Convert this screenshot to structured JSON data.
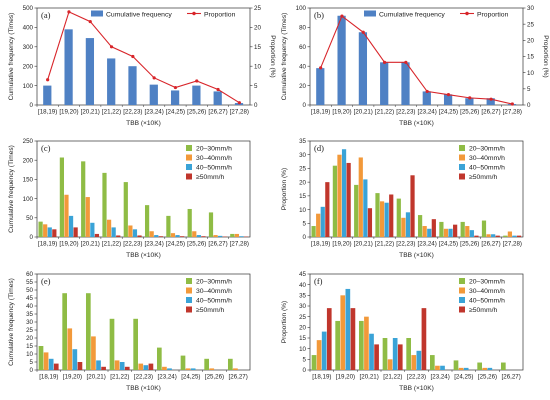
{
  "chart_data": [
    {
      "tag": "(a)",
      "type": "bar",
      "categories": [
        "[18,19)",
        "[19,20)",
        "[20,21)",
        "[21,22)",
        "[22,23)",
        "[23,24)",
        "[24,25)",
        "[25,26)",
        "[26,27)",
        "[27,28)"
      ],
      "series": [
        {
          "name": "Cumulative frequency",
          "kind": "bar",
          "axis": "left",
          "color": "#4f81c4",
          "values": [
            100,
            390,
            345,
            240,
            200,
            105,
            75,
            100,
            70,
            10
          ]
        },
        {
          "name": "Proportion",
          "kind": "line",
          "axis": "right",
          "color": "#d8252a",
          "values": [
            6.5,
            24,
            21.5,
            15,
            12.5,
            7,
            4.5,
            6.2,
            4,
            0.6
          ]
        }
      ],
      "xlabel": "TBB (×10K)",
      "ylabel": "Cumulative frequency (Times)",
      "y2label": "Proportion (%)",
      "ylim": [
        0,
        500
      ],
      "yticks": [
        0,
        100,
        200,
        300,
        400,
        500
      ],
      "y2lim": [
        0,
        25
      ],
      "y2ticks": [
        0,
        5,
        10,
        15,
        20,
        25
      ],
      "legend": "top"
    },
    {
      "tag": "(b)",
      "type": "bar",
      "categories": [
        "[18,19)",
        "[19,20)",
        "[20,21)",
        "[21,22)",
        "[22,23)",
        "[23,24)",
        "[24,25)",
        "[25,26)",
        "[26,27)",
        "[27,28)"
      ],
      "series": [
        {
          "name": "Cumulative frequency",
          "kind": "bar",
          "axis": "left",
          "color": "#4f81c4",
          "values": [
            38,
            92,
            75,
            44,
            44,
            14,
            11,
            7,
            7,
            1
          ]
        },
        {
          "name": "Proportion",
          "kind": "line",
          "axis": "right",
          "color": "#d8252a",
          "values": [
            11.5,
            27.5,
            22.5,
            13.2,
            13.2,
            4.2,
            3.2,
            2.2,
            1.8,
            0.3
          ]
        }
      ],
      "xlabel": "TBB (×10K)",
      "ylabel": "Cumulative frequency (Times)",
      "y2label": "Proportion (%)",
      "ylim": [
        0,
        100
      ],
      "yticks": [
        0,
        20,
        40,
        60,
        80,
        100
      ],
      "y2lim": [
        0,
        30
      ],
      "y2ticks": [
        0,
        5,
        10,
        15,
        20,
        25,
        30
      ],
      "legend": "top"
    },
    {
      "tag": "(c)",
      "type": "bar",
      "categories": [
        "[18,19)",
        "[19,20)",
        "[20,21)",
        "[21,22)",
        "[22,23)",
        "[23,24)",
        "[24,25)",
        "[25,26)",
        "[26,27)",
        "[27,28)"
      ],
      "series": [
        {
          "name": "20–30mm/h",
          "color": "#8fbc45",
          "values": [
            40,
            207,
            197,
            167,
            143,
            83,
            55,
            73,
            64,
            8
          ]
        },
        {
          "name": "30–40mm/h",
          "color": "#f2993a",
          "values": [
            33,
            110,
            104,
            45,
            30,
            15,
            10,
            15,
            5,
            8
          ]
        },
        {
          "name": "40–50mm/h",
          "color": "#3aa3d7",
          "values": [
            25,
            55,
            37,
            25,
            20,
            5,
            5,
            5,
            3,
            2
          ]
        },
        {
          "name": "≥50mm/h",
          "color": "#c0362c",
          "values": [
            20,
            25,
            8,
            4,
            4,
            2,
            2,
            2,
            1,
            1
          ]
        }
      ],
      "xlabel": "TBB (×10K)",
      "ylabel": "Cumulative frequency (Times)",
      "ylim": [
        0,
        250
      ],
      "yticks": [
        0,
        50,
        100,
        150,
        200,
        250
      ],
      "legend": "top-right"
    },
    {
      "tag": "(d)",
      "type": "bar",
      "categories": [
        "[18,19)",
        "[19,20)",
        "[20,21)",
        "[21,22)",
        "[22,23)",
        "[23,24)",
        "[24,25)",
        "[25,26)",
        "[26,27)",
        "[27,28)"
      ],
      "series": [
        {
          "name": "20–30mm/h",
          "color": "#8fbc45",
          "values": [
            4,
            26,
            19,
            16,
            14,
            8,
            5.5,
            5.5,
            6,
            0.5
          ]
        },
        {
          "name": "30–40mm/h",
          "color": "#f2993a",
          "values": [
            8.5,
            30,
            29,
            13,
            7,
            4,
            3,
            4,
            1,
            2
          ]
        },
        {
          "name": "40–50mm/h",
          "color": "#3aa3d7",
          "values": [
            11,
            32,
            21,
            12.5,
            9,
            3,
            3,
            2.5,
            1,
            0.5
          ]
        },
        {
          "name": "≥50mm/h",
          "color": "#c0362c",
          "values": [
            20,
            27,
            10.5,
            15.5,
            22.5,
            6.5,
            4.5,
            0.5,
            0.5,
            0.5
          ]
        }
      ],
      "xlabel": "TBB (×10K)",
      "ylabel": "Proportion (%)",
      "ylim": [
        0,
        35
      ],
      "yticks": [
        0,
        5,
        10,
        15,
        20,
        25,
        30,
        35
      ],
      "legend": "top-right"
    },
    {
      "tag": "(e)",
      "type": "bar",
      "categories": [
        "[18,19)",
        "[19,20)",
        "[20,21)",
        "[21,22)",
        "[22,23)",
        "[23,24)",
        "[24,25)",
        "[25,26)",
        "[26,27)"
      ],
      "series": [
        {
          "name": "20–30mm/h",
          "color": "#8fbc45",
          "values": [
            15,
            48,
            48,
            32,
            32,
            14,
            9,
            7,
            7
          ]
        },
        {
          "name": "30–40mm/h",
          "color": "#f2993a",
          "values": [
            11,
            26,
            21,
            6,
            4,
            2,
            1,
            1,
            1
          ]
        },
        {
          "name": "40–50mm/h",
          "color": "#3aa3d7",
          "values": [
            7,
            13,
            6,
            5,
            3,
            1,
            1,
            0,
            0
          ]
        },
        {
          "name": "≥50mm/h",
          "color": "#c0362c",
          "values": [
            4,
            5,
            2,
            2,
            4,
            0,
            0,
            0,
            0
          ]
        }
      ],
      "xlabel": "TBB (×10K)",
      "ylabel": "Cumulative frequency (Times)",
      "ylim": [
        0,
        60
      ],
      "yticks": [
        0,
        5,
        10,
        15,
        20,
        25,
        30,
        35,
        40,
        45,
        50,
        55,
        60
      ],
      "legend": "top-right"
    },
    {
      "tag": "(f)",
      "type": "bar",
      "categories": [
        "[18,19)",
        "[19,20)",
        "[20,21)",
        "[21,22)",
        "[22,23)",
        "[23,24)",
        "[24,25)",
        "[25,26)",
        "[26,27)"
      ],
      "series": [
        {
          "name": "20–30mm/h",
          "color": "#8fbc45",
          "values": [
            7,
            23,
            23,
            15,
            15,
            7,
            4.5,
            3.5,
            3.5
          ]
        },
        {
          "name": "30–40mm/h",
          "color": "#f2993a",
          "values": [
            14,
            35,
            25,
            5,
            7,
            2,
            1,
            1,
            0
          ]
        },
        {
          "name": "40–50mm/h",
          "color": "#3aa3d7",
          "values": [
            18,
            38,
            17,
            15,
            9,
            2,
            1,
            1,
            0
          ]
        },
        {
          "name": "≥50mm/h",
          "color": "#c0362c",
          "values": [
            29,
            29,
            12,
            12,
            29,
            0,
            0,
            0,
            0
          ]
        }
      ],
      "xlabel": "TBB (×10K)",
      "ylabel": "Proportion (%)",
      "ylim": [
        0,
        45
      ],
      "yticks": [
        0,
        5,
        10,
        15,
        20,
        25,
        30,
        35,
        40,
        45
      ],
      "legend": "top-right"
    }
  ]
}
